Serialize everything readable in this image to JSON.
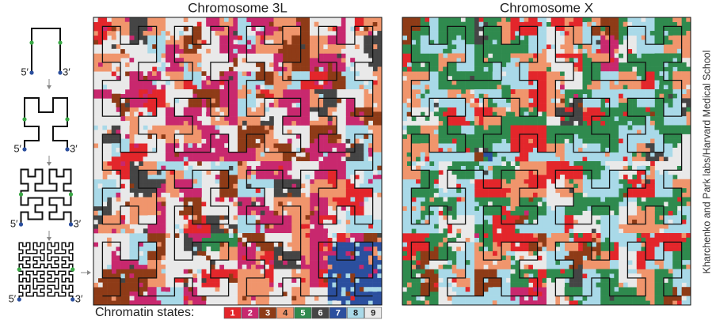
{
  "figure": {
    "panels": [
      {
        "title": "Chromosome 3L"
      },
      {
        "title": "Chromosome X"
      }
    ],
    "curve_steps": [
      {
        "start": "5′",
        "end": "3′"
      },
      {
        "start": "5′",
        "end": "3′"
      },
      {
        "start": "5′",
        "end": "3′"
      },
      {
        "start": "5′",
        "end": "3′"
      }
    ],
    "legend": {
      "title": "Chromatin states:",
      "states": [
        {
          "label": "1",
          "color": "#e3262b"
        },
        {
          "label": "2",
          "color": "#c8286e"
        },
        {
          "label": "3",
          "color": "#8e3b17"
        },
        {
          "label": "4",
          "color": "#f0956c"
        },
        {
          "label": "5",
          "color": "#2f8a4e"
        },
        {
          "label": "6",
          "color": "#454545"
        },
        {
          "label": "7",
          "color": "#2b4f9e"
        },
        {
          "label": "8",
          "color": "#a9d9e8"
        },
        {
          "label": "9",
          "color": "#e9e9e9"
        }
      ]
    },
    "credit": "Kharchenko and Park labs/Harvard Medical School"
  }
}
